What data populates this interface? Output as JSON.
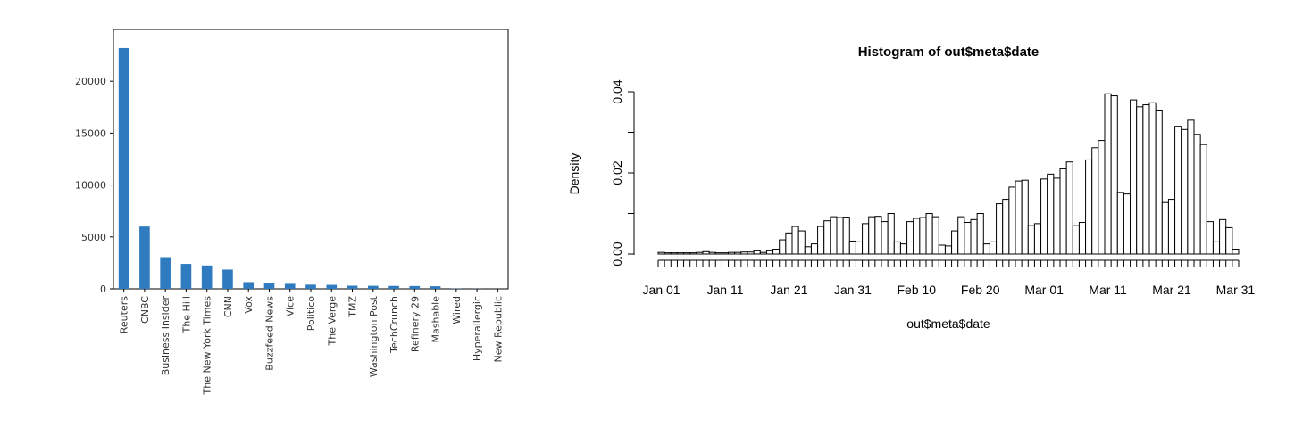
{
  "chart_data": [
    {
      "type": "bar",
      "categories": [
        "Reuters",
        "CNBC",
        "Business Insider",
        "The Hill",
        "The New York Times",
        "CNN",
        "Vox",
        "Buzzfeed News",
        "Vice",
        "Politico",
        "The Verge",
        "TMZ",
        "Washington Post",
        "TechCrunch",
        "Refinery 29",
        "Mashable",
        "Wired",
        "Hyperallergic",
        "New Republic"
      ],
      "values": [
        23200,
        6000,
        3050,
        2400,
        2250,
        1850,
        650,
        520,
        480,
        400,
        380,
        300,
        290,
        280,
        270,
        250,
        20,
        10,
        5
      ],
      "yticks": [
        "0",
        "5000",
        "10000",
        "15000",
        "20000"
      ],
      "ylim": [
        0,
        25000
      ],
      "bar_color": "#2f7bbf",
      "title": "",
      "xlabel": "",
      "ylabel": ""
    },
    {
      "type": "bar",
      "title": "Histogram of out$meta$date",
      "xlabel": "out$meta$date",
      "ylabel": "Density",
      "x_start": "Jan 01",
      "bin_width_days": 1,
      "values": [
        0.0004,
        0.0003,
        0.0003,
        0.0003,
        0.0003,
        0.0003,
        0.0004,
        0.0006,
        0.0004,
        0.0003,
        0.0003,
        0.0004,
        0.0004,
        0.0005,
        0.0005,
        0.0008,
        0.0004,
        0.0008,
        0.0012,
        0.0035,
        0.0052,
        0.0068,
        0.0057,
        0.0018,
        0.0025,
        0.0068,
        0.0082,
        0.0092,
        0.009,
        0.0091,
        0.0032,
        0.003,
        0.0075,
        0.0092,
        0.0093,
        0.008,
        0.01,
        0.003,
        0.0025,
        0.008,
        0.0088,
        0.009,
        0.01,
        0.0092,
        0.0022,
        0.002,
        0.0057,
        0.0092,
        0.0078,
        0.0085,
        0.01,
        0.0025,
        0.003,
        0.0124,
        0.0135,
        0.0165,
        0.018,
        0.0182,
        0.007,
        0.0075,
        0.0185,
        0.0197,
        0.0187,
        0.021,
        0.0227,
        0.007,
        0.0078,
        0.0232,
        0.0262,
        0.028,
        0.0395,
        0.039,
        0.0152,
        0.0148,
        0.038,
        0.0363,
        0.0368,
        0.0373,
        0.0355,
        0.0127,
        0.0135,
        0.0315,
        0.0307,
        0.033,
        0.0295,
        0.027,
        0.008,
        0.003,
        0.0085,
        0.0065,
        0.0012
      ],
      "yticks": [
        "0.00",
        "0.02",
        "0.04"
      ],
      "minor_yticks": [
        0.01,
        0.03
      ],
      "ylim": [
        0,
        0.04
      ],
      "xticks": [
        "Jan 01",
        "Jan 11",
        "Jan 21",
        "Jan 31",
        "Feb 10",
        "Feb 20",
        "Mar 01",
        "Mar 11",
        "Mar 21",
        "Mar 31"
      ],
      "xtick_day_index": [
        0,
        10,
        20,
        30,
        40,
        50,
        60,
        70,
        80,
        90
      ]
    }
  ]
}
